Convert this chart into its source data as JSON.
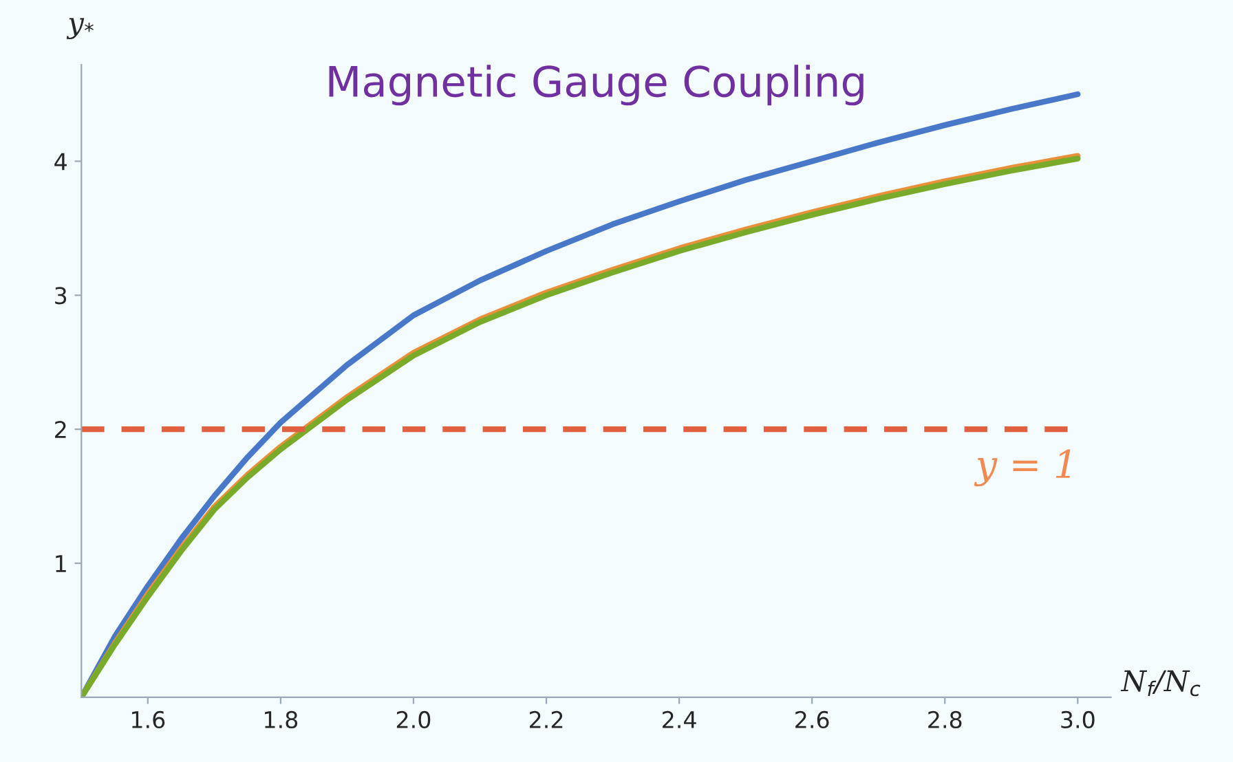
{
  "chart_data": {
    "type": "line",
    "title": "Magnetic Gauge Coupling",
    "xlabel": "N$_{f}$/N$_{c}$",
    "ylabel": "y$_{*}$",
    "x": [
      1.5,
      1.55,
      1.6,
      1.65,
      1.7,
      1.75,
      1.8,
      1.9,
      2.0,
      2.1,
      2.2,
      2.3,
      2.4,
      2.5,
      2.6,
      2.7,
      2.8,
      2.9,
      3.0
    ],
    "series": [
      {
        "color": "#4a78c8",
        "values": [
          0,
          0.45,
          0.83,
          1.18,
          1.5,
          1.79,
          2.05,
          2.48,
          2.85,
          3.11,
          3.33,
          3.53,
          3.7,
          3.86,
          4.0,
          4.14,
          4.27,
          4.39,
          4.5
        ]
      },
      {
        "color": "#e8903a",
        "values": [
          0,
          0.4,
          0.77,
          1.11,
          1.42,
          1.66,
          1.87,
          2.24,
          2.57,
          2.82,
          3.02,
          3.19,
          3.35,
          3.49,
          3.62,
          3.74,
          3.85,
          3.95,
          4.04
        ]
      },
      {
        "color": "#7aaa2a",
        "values": [
          0,
          0.39,
          0.75,
          1.09,
          1.4,
          1.64,
          1.85,
          2.22,
          2.55,
          2.8,
          3.0,
          3.17,
          3.33,
          3.47,
          3.6,
          3.72,
          3.83,
          3.93,
          4.02
        ]
      }
    ],
    "xlim": [
      1.5,
      3.05
    ],
    "ylim": [
      0,
      4.72
    ],
    "xticks": [
      {
        "value": 1.6,
        "label": "1.6"
      },
      {
        "value": 1.8,
        "label": "1.8"
      },
      {
        "value": 2.0,
        "label": "2.0"
      },
      {
        "value": 2.2,
        "label": "2.2"
      },
      {
        "value": 2.4,
        "label": "2.4"
      },
      {
        "value": 2.6,
        "label": "2.6"
      },
      {
        "value": 2.8,
        "label": "2.8"
      },
      {
        "value": 3.0,
        "label": "3.0"
      }
    ],
    "yticks": [
      1,
      2,
      3,
      4
    ],
    "ref_lines": [
      {
        "axis": "y",
        "value": 2,
        "color": "#e06040",
        "line_style": "dashed"
      }
    ],
    "annotations": [
      "y = 1"
    ],
    "grid": false,
    "legend": false
  }
}
